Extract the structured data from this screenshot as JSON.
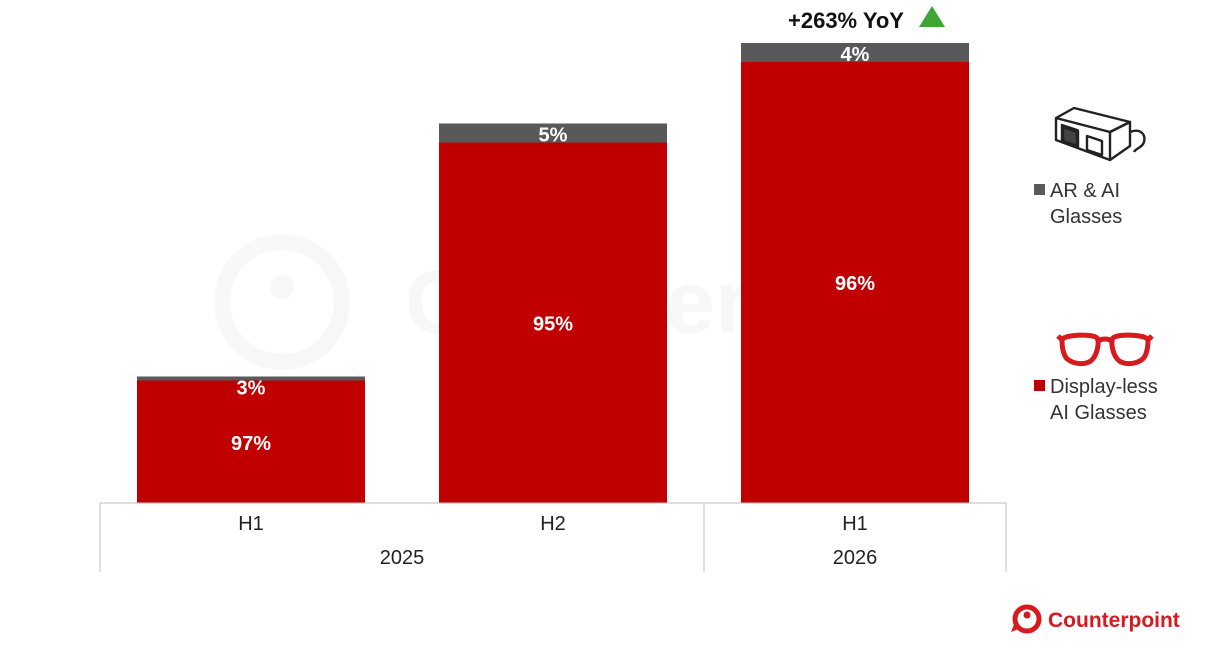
{
  "chart_data": {
    "type": "bar",
    "stacked": true,
    "normalized_100": true,
    "categories": [
      "H1",
      "H2",
      "H1"
    ],
    "groups": [
      {
        "label": "2025",
        "categories": [
          "H1",
          "H2"
        ]
      },
      {
        "label": "2026",
        "categories": [
          "H1"
        ]
      }
    ],
    "relative_bar_heights": [
      0.275,
      0.825,
      1.0
    ],
    "series": [
      {
        "name": "Display-less AI Glasses",
        "values": [
          97,
          95,
          96
        ],
        "labels": [
          "97%",
          "95%",
          "96%"
        ],
        "color": "#c00000"
      },
      {
        "name": "AR & AI Glasses",
        "values": [
          3,
          5,
          4
        ],
        "labels": [
          "3%",
          "5%",
          "4%"
        ],
        "color": "#595959"
      }
    ],
    "annotation": {
      "text": "+263% YoY",
      "target_index": 2,
      "icon": "up-triangle-icon",
      "color": "#3fa535"
    },
    "legend": {
      "placement": "right",
      "items": [
        {
          "label_lines": [
            "AR & AI",
            "Glasses"
          ],
          "icon": "ar-glasses-icon",
          "color": "#595959"
        },
        {
          "label_lines": [
            "Display-less",
            "AI Glasses"
          ],
          "icon": "eyeglasses-icon",
          "color": "#c00000"
        }
      ]
    },
    "grid": false,
    "title": "",
    "xlabel": "",
    "ylabel": ""
  },
  "brand": {
    "name": "Counterpoint",
    "color": "#d71920"
  }
}
